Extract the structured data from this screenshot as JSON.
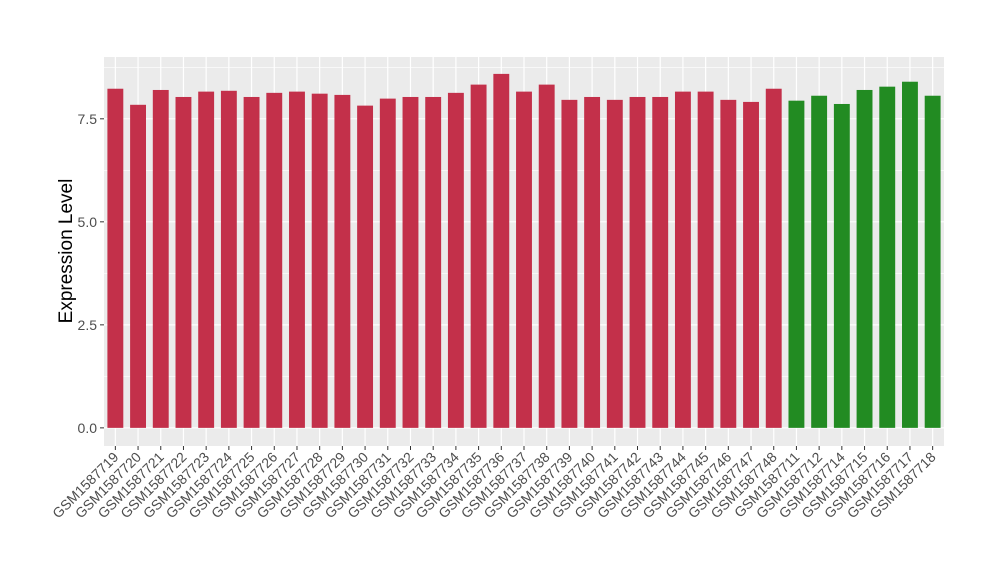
{
  "chart_data": {
    "type": "bar",
    "title": "",
    "xlabel": "",
    "ylabel": "Expression Level",
    "ylim": [
      -0.44,
      9.0
    ],
    "yticks": [
      0.0,
      2.5,
      5.0,
      7.5
    ],
    "ytick_labels": [
      "0.0",
      "2.5",
      "5.0",
      "7.5"
    ],
    "grid": true,
    "legend": "none",
    "colors": {
      "group1": "#C3304A",
      "group2": "#228B22",
      "panel": "#EBEBEB",
      "grid": "#FFFFFF"
    },
    "categories": [
      "GSM1587719",
      "GSM1587720",
      "GSM1587721",
      "GSM1587722",
      "GSM1587723",
      "GSM1587724",
      "GSM1587725",
      "GSM1587726",
      "GSM1587727",
      "GSM1587728",
      "GSM1587729",
      "GSM1587730",
      "GSM1587731",
      "GSM1587732",
      "GSM1587733",
      "GSM1587734",
      "GSM1587735",
      "GSM1587736",
      "GSM1587737",
      "GSM1587738",
      "GSM1587739",
      "GSM1587740",
      "GSM1587741",
      "GSM1587742",
      "GSM1587743",
      "GSM1587744",
      "GSM1587745",
      "GSM1587746",
      "GSM1587747",
      "GSM1587748",
      "GSM1587711",
      "GSM1587712",
      "GSM1587714",
      "GSM1587715",
      "GSM1587716",
      "GSM1587717",
      "GSM1587718"
    ],
    "values": [
      8.23,
      7.84,
      8.2,
      8.03,
      8.16,
      8.18,
      8.03,
      8.13,
      8.16,
      8.11,
      8.08,
      7.82,
      7.99,
      8.03,
      8.03,
      8.13,
      8.33,
      8.59,
      8.16,
      8.33,
      7.96,
      8.03,
      7.96,
      8.03,
      8.03,
      8.16,
      8.16,
      7.96,
      7.91,
      8.23,
      7.94,
      8.06,
      7.86,
      8.2,
      8.28,
      8.4,
      8.06
    ],
    "groups": [
      "group1",
      "group1",
      "group1",
      "group1",
      "group1",
      "group1",
      "group1",
      "group1",
      "group1",
      "group1",
      "group1",
      "group1",
      "group1",
      "group1",
      "group1",
      "group1",
      "group1",
      "group1",
      "group1",
      "group1",
      "group1",
      "group1",
      "group1",
      "group1",
      "group1",
      "group1",
      "group1",
      "group1",
      "group1",
      "group1",
      "group2",
      "group2",
      "group2",
      "group2",
      "group2",
      "group2",
      "group2"
    ]
  }
}
